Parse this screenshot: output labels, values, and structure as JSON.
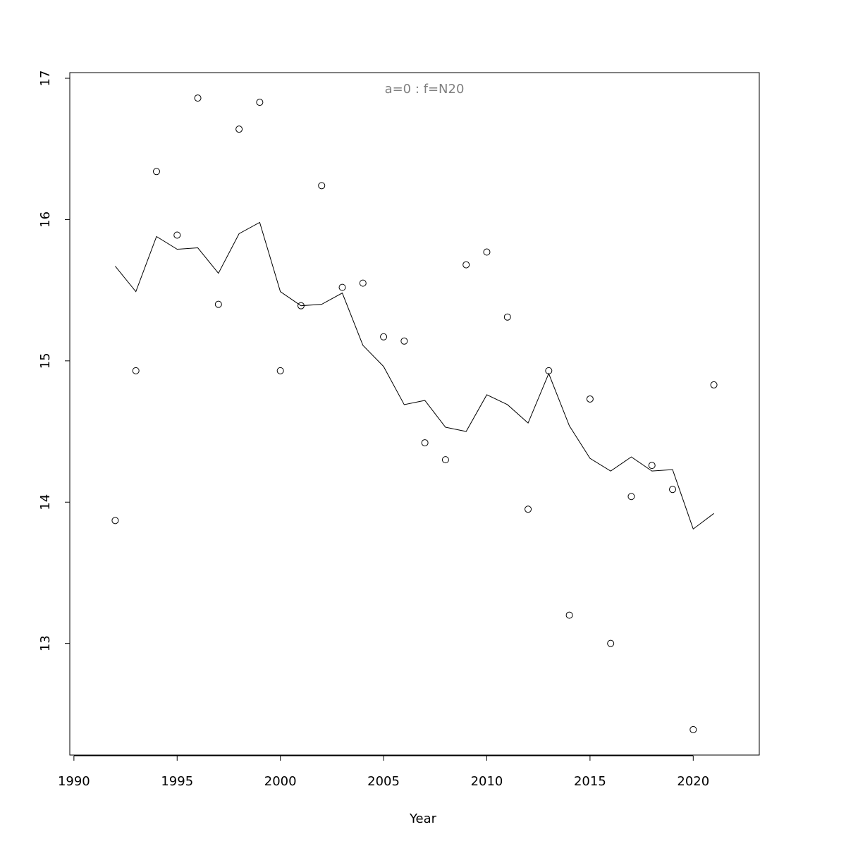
{
  "chart_data": {
    "type": "line",
    "annotation": "a=0  :  f=N20",
    "x_label": "Year",
    "x": [
      1992,
      1993,
      1994,
      1995,
      1996,
      1997,
      1998,
      1999,
      2000,
      2001,
      2002,
      2003,
      2004,
      2005,
      2006,
      2007,
      2008,
      2009,
      2010,
      2011,
      2012,
      2013,
      2014,
      2015,
      2016,
      2017,
      2018,
      2019,
      2020,
      2021
    ],
    "series": [
      {
        "style": "points",
        "color": "#000000",
        "values": [
          13.87,
          14.93,
          16.34,
          15.89,
          16.86,
          15.4,
          16.64,
          16.83,
          14.93,
          15.39,
          16.24,
          15.52,
          15.55,
          15.17,
          15.14,
          14.42,
          14.3,
          15.68,
          15.77,
          15.31,
          13.95,
          14.93,
          13.2,
          14.73,
          13.0,
          14.04,
          14.26,
          14.09,
          12.39,
          14.83
        ]
      },
      {
        "style": "line",
        "color": "#000000",
        "values": [
          15.67,
          15.49,
          15.88,
          15.79,
          15.8,
          15.62,
          15.9,
          15.98,
          15.49,
          15.39,
          15.4,
          15.48,
          15.11,
          14.96,
          14.69,
          14.72,
          14.53,
          14.5,
          14.76,
          14.69,
          14.56,
          14.91,
          14.54,
          14.31,
          14.22,
          14.32,
          14.22,
          14.23,
          13.81,
          13.92
        ]
      }
    ],
    "xlim": [
      1989.8,
      2023.2
    ],
    "xticks": [
      1990,
      1995,
      2000,
      2005,
      2010,
      2015,
      2020
    ],
    "ylim": [
      12.21,
      17.04
    ],
    "yticks": [
      13,
      14,
      15,
      16,
      17
    ]
  }
}
